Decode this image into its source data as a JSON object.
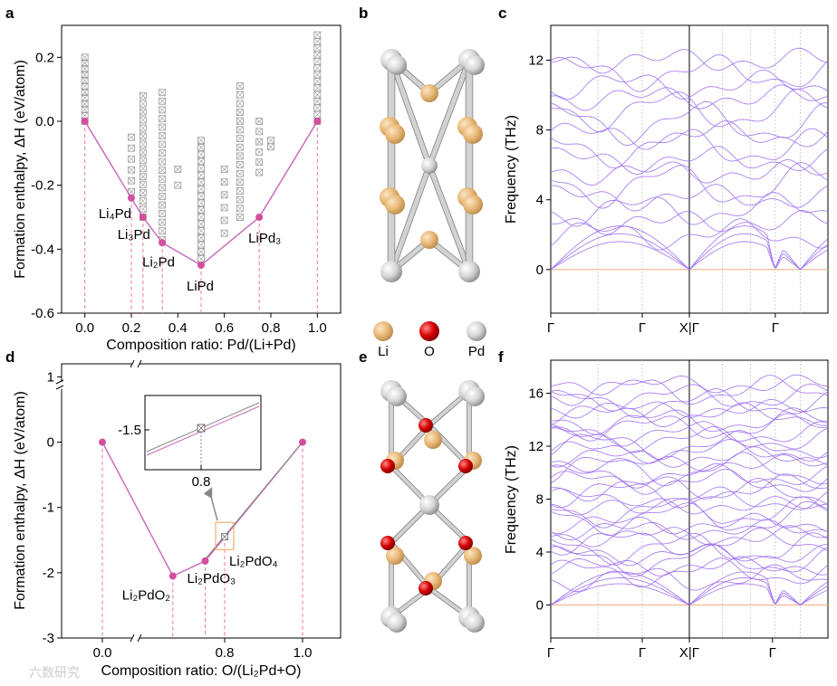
{
  "panel_labels": [
    "a",
    "b",
    "c",
    "d",
    "e",
    "f"
  ],
  "colors": {
    "hull": "#d44fa0",
    "hull_line": "#c866b8",
    "dash": "#e87aa8",
    "marker_gray": "#9a9a9a",
    "phonon": "#9b6bf0",
    "zero_line": "#f0b48a",
    "li": "#e8b878",
    "o": "#d40000",
    "pd": "#d6d6d6",
    "inset_box": "#f0a050"
  },
  "legend": [
    {
      "label": "Li",
      "color": "#e8b878"
    },
    {
      "label": "O",
      "color": "#d40000"
    },
    {
      "label": "Pd",
      "color": "#d6d6d6"
    }
  ],
  "watermark": "六数研究",
  "chart_data": [
    {
      "panel": "a",
      "type": "scatter",
      "ylabel": "Formation enthalpy,  ΔH (eV/atom)",
      "xlabel": "Composition ratio: Pd/(Li+Pd)",
      "xlim": [
        -0.1,
        1.1
      ],
      "ylim": [
        -0.6,
        0.3
      ],
      "xticks": [
        "0.0",
        "0.2",
        "0.4",
        "0.6",
        "0.8",
        "1.0"
      ],
      "xtick_values": [
        0.0,
        0.2,
        0.4,
        0.6,
        0.8,
        1.0
      ],
      "yticks": [
        "-0.6",
        "-0.4",
        "-0.2",
        "0.0",
        "0.2"
      ],
      "ytick_values": [
        -0.6,
        -0.4,
        -0.2,
        0.0,
        0.2
      ],
      "hull": [
        {
          "x": 0.0,
          "y": 0.0,
          "label": ""
        },
        {
          "x": 0.2,
          "y": -0.24,
          "label": "Li₄Pd"
        },
        {
          "x": 0.25,
          "y": -0.3,
          "label": "Li₃Pd"
        },
        {
          "x": 0.333,
          "y": -0.38,
          "label": "Li₂Pd"
        },
        {
          "x": 0.5,
          "y": -0.45,
          "label": "LiPd"
        },
        {
          "x": 0.75,
          "y": -0.3,
          "label": "LiPd₃"
        },
        {
          "x": 1.0,
          "y": 0.0,
          "label": ""
        }
      ],
      "candidate_columns": [
        {
          "x": 0.0,
          "ymin": 0.0,
          "ymax": 0.2,
          "n": 12
        },
        {
          "x": 0.2,
          "ymin": -0.22,
          "ymax": -0.05,
          "n": 6
        },
        {
          "x": 0.25,
          "ymin": -0.3,
          "ymax": 0.08,
          "n": 16
        },
        {
          "x": 0.333,
          "ymin": -0.37,
          "ymax": 0.09,
          "n": 18
        },
        {
          "x": 0.4,
          "ymin": -0.2,
          "ymax": -0.15,
          "n": 2
        },
        {
          "x": 0.5,
          "ymin": -0.43,
          "ymax": -0.06,
          "n": 18
        },
        {
          "x": 0.6,
          "ymin": -0.35,
          "ymax": -0.15,
          "n": 6
        },
        {
          "x": 0.667,
          "ymin": -0.3,
          "ymax": 0.11,
          "n": 16
        },
        {
          "x": 0.75,
          "ymin": -0.16,
          "ymax": 0.0,
          "n": 6
        },
        {
          "x": 0.8,
          "ymin": -0.08,
          "ymax": -0.06,
          "n": 2
        },
        {
          "x": 1.0,
          "ymin": 0.0,
          "ymax": 0.27,
          "n": 14
        }
      ]
    },
    {
      "panel": "c",
      "type": "line",
      "ylabel": "Frequency (THz)",
      "ylim": [
        -2.5,
        14
      ],
      "yticks": [
        "0",
        "4",
        "8",
        "12"
      ],
      "ytick_values": [
        0,
        4,
        8,
        12
      ],
      "kpath_labels": [
        "Γ",
        "Γ",
        "X|Γ",
        "Γ"
      ],
      "kpath_positions": [
        0.0,
        0.33,
        0.5,
        0.81
      ],
      "band_count": 18,
      "max_frequency": 13.2
    },
    {
      "panel": "d",
      "type": "line",
      "ylabel": "Formation enthalpy,  ΔH (eV/atom)",
      "xlabel": "Composition ratio: O/(Li₂Pd+O)",
      "ylim": [
        -3,
        1.2
      ],
      "xticks": [
        "0.0",
        "0.8",
        "1.0"
      ],
      "xtick_values": [
        0.0,
        0.8,
        1.0
      ],
      "yticks": [
        "-3",
        "-2",
        "-1",
        "0",
        "1"
      ],
      "ytick_values": [
        -3,
        -2,
        -1,
        0,
        1
      ],
      "hull": [
        {
          "x": 0.0,
          "y": 0.0,
          "label": ""
        },
        {
          "x": 0.667,
          "y": -2.05,
          "label": "Li₂PdO₂"
        },
        {
          "x": 0.75,
          "y": -1.82,
          "label": "Li₂PdO₃"
        },
        {
          "x": 1.0,
          "y": 0.0,
          "label": ""
        }
      ],
      "near_hull": [
        {
          "x": 0.8,
          "y": -1.45,
          "label": "Li₂PdO₄"
        }
      ],
      "inset": {
        "ytick": "-1.5",
        "xtick": "0.8"
      }
    },
    {
      "panel": "f",
      "type": "line",
      "ylabel": "Frequency (THz)",
      "ylim": [
        -2.5,
        18.5
      ],
      "yticks": [
        "0",
        "4",
        "8",
        "12",
        "16"
      ],
      "ytick_values": [
        0,
        4,
        8,
        12,
        16
      ],
      "kpath_labels": [
        "Γ",
        "Γ",
        "X|Γ",
        "Γ"
      ],
      "kpath_positions": [
        0.0,
        0.33,
        0.5,
        0.8
      ],
      "band_count": 36,
      "max_frequency": 17.6
    }
  ]
}
